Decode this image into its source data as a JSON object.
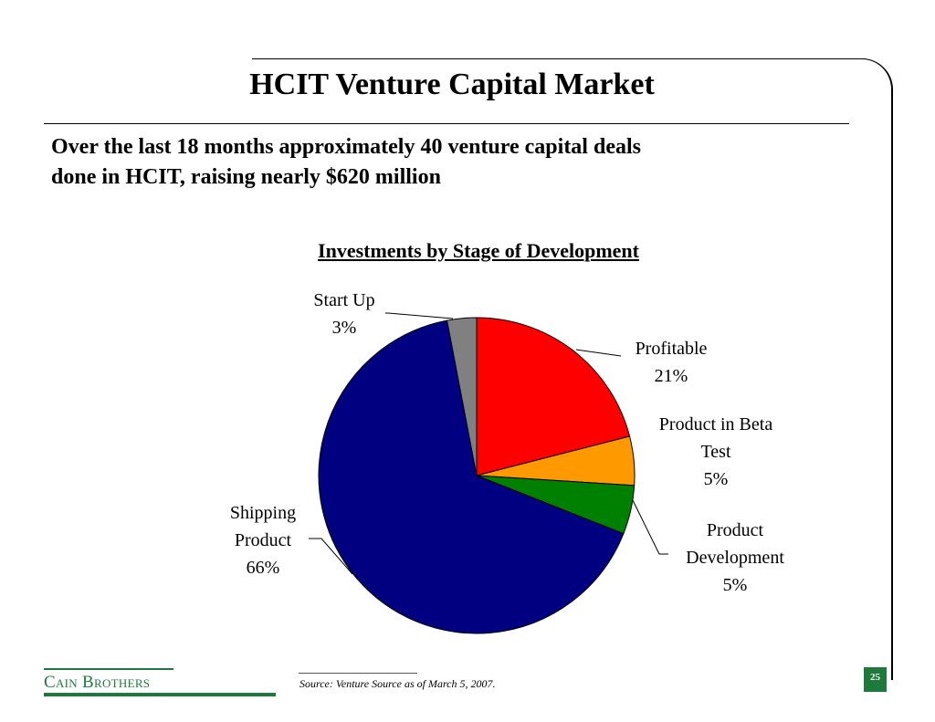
{
  "slide": {
    "title": "HCIT Venture Capital Market",
    "headline_line1": "Over the last 18 months approximately 40 venture capital deals",
    "headline_line2": "done in HCIT, raising nearly $620 million",
    "source": "Source: Venture Source as of March 5, 2007.",
    "page_number": "25",
    "brand": "Cain Brothers"
  },
  "colors": {
    "brand_green": "#1e7a3c"
  },
  "chart_data": {
    "type": "pie",
    "title": "Investments by Stage of Development",
    "slices": [
      {
        "label_lines": [
          "Profitable",
          "21%"
        ],
        "value": 21,
        "color": "#ff0000"
      },
      {
        "label_lines": [
          "Product in Beta",
          "Test",
          "5%"
        ],
        "value": 5,
        "color": "#ff9900"
      },
      {
        "label_lines": [
          "Product",
          "Development",
          "5%"
        ],
        "value": 5,
        "color": "#008000"
      },
      {
        "label_lines": [
          "Shipping",
          "Product",
          "66%"
        ],
        "value": 66,
        "color": "#000080"
      },
      {
        "label_lines": [
          "Start Up",
          "3%"
        ],
        "value": 3,
        "color": "#808080"
      }
    ]
  }
}
